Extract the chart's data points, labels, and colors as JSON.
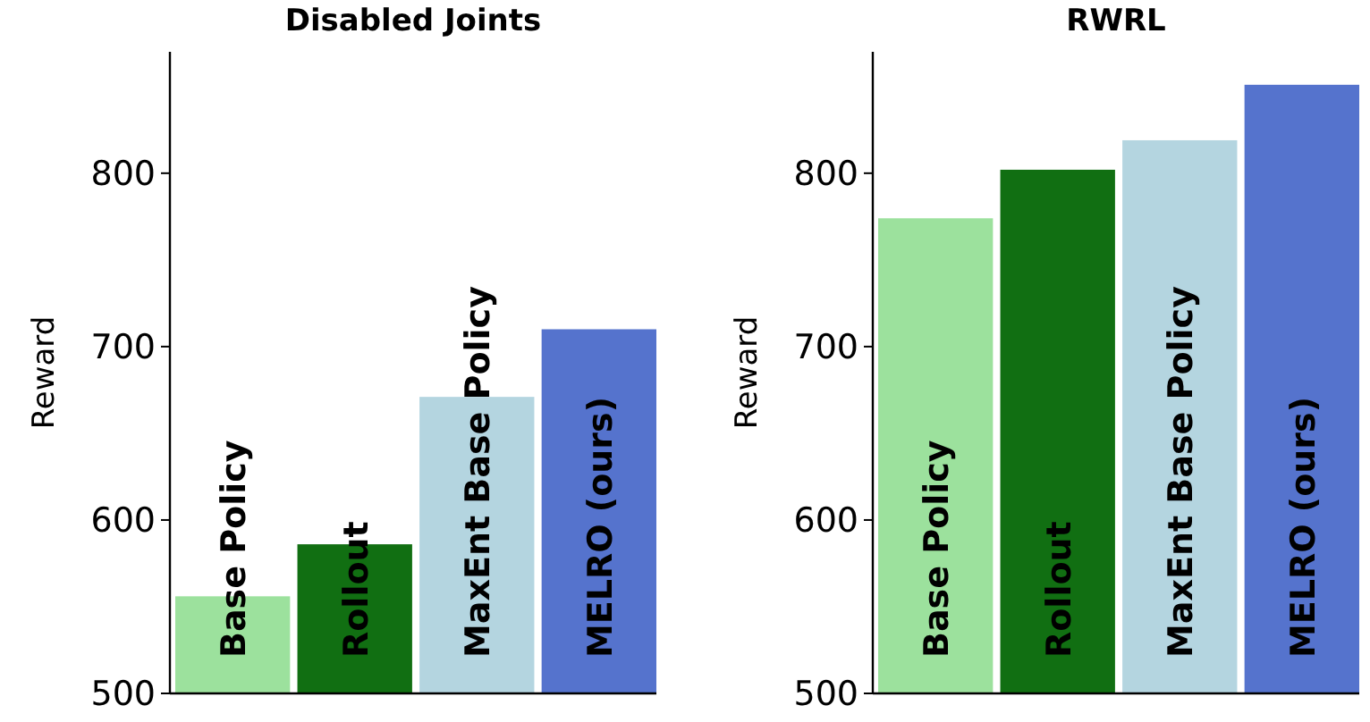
{
  "chart_data": [
    {
      "type": "bar",
      "title": "Disabled Joints",
      "ylabel": "Reward",
      "categories": [
        "Base Policy",
        "Rollout",
        "MaxEnt Base Policy",
        "MELRO (ours)"
      ],
      "values": [
        556,
        586,
        671,
        710
      ],
      "colors": [
        "#9ce19d",
        "#116f12",
        "#b4d5e0",
        "#5573cd"
      ],
      "ylim": [
        500,
        870
      ],
      "yticks": [
        500,
        600,
        700,
        800
      ],
      "grid": false
    },
    {
      "type": "bar",
      "title": "RWRL",
      "ylabel": "Reward",
      "categories": [
        "Base Policy",
        "Rollout",
        "MaxEnt Base Policy",
        "MELRO (ours)"
      ],
      "values": [
        774,
        802,
        819,
        851
      ],
      "colors": [
        "#9ce19d",
        "#116f12",
        "#b4d5e0",
        "#5573cd"
      ],
      "ylim": [
        500,
        870
      ],
      "yticks": [
        500,
        600,
        700,
        800
      ],
      "grid": false
    }
  ]
}
